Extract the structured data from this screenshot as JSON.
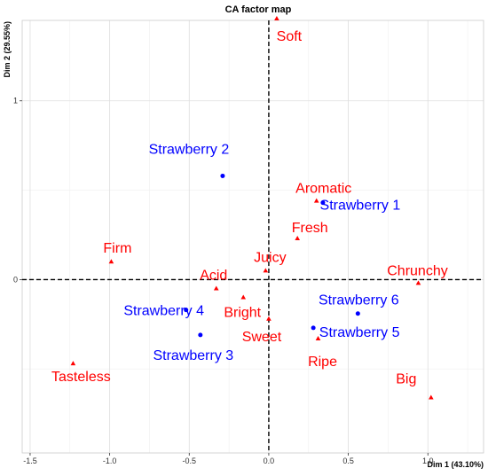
{
  "chart_data": {
    "type": "scatter",
    "title": "CA factor map",
    "xlabel": "Dim 1 (43.10%)",
    "ylabel": "Dim 2 (29.55%)",
    "xlim": [
      -1.55,
      1.35
    ],
    "ylim": [
      -0.97,
      1.45
    ],
    "x_ticks": [
      -1.5,
      -1.0,
      -0.5,
      0.0,
      0.5,
      1.0
    ],
    "x_tick_labels": [
      "-1.5",
      "-1.0",
      "-0.5",
      "0.0",
      "0.5",
      "1.0"
    ],
    "y_ticks": [
      0,
      1
    ],
    "y_tick_labels": [
      "0",
      "1"
    ],
    "grid": true,
    "colors": {
      "rows": "#0000ff",
      "cols": "#ff0000"
    },
    "series": [
      {
        "marker": "circle",
        "color": "#0000ff",
        "points": [
          {
            "label": "Strawberry 1",
            "x": 0.34,
            "y": 0.43
          },
          {
            "label": "Strawberry 2",
            "x": -0.29,
            "y": 0.58
          },
          {
            "label": "Strawberry 3",
            "x": -0.43,
            "y": -0.31
          },
          {
            "label": "Strawberry 4",
            "x": -0.52,
            "y": -0.17
          },
          {
            "label": "Strawberry 5",
            "x": 0.28,
            "y": -0.27
          },
          {
            "label": "Strawberry 6",
            "x": 0.56,
            "y": -0.19
          }
        ]
      },
      {
        "marker": "triangle",
        "color": "#ff0000",
        "points": [
          {
            "label": "Soft",
            "x": 0.05,
            "y": 1.46
          },
          {
            "label": "Aromatic",
            "x": 0.3,
            "y": 0.44
          },
          {
            "label": "Fresh",
            "x": 0.18,
            "y": 0.23
          },
          {
            "label": "Juicy",
            "x": -0.02,
            "y": 0.05
          },
          {
            "label": "Firm",
            "x": -0.99,
            "y": 0.1
          },
          {
            "label": "Acid",
            "x": -0.33,
            "y": -0.05
          },
          {
            "label": "Bright",
            "x": -0.16,
            "y": -0.1
          },
          {
            "label": "Sweet",
            "x": 0.0,
            "y": -0.22
          },
          {
            "label": "Ripe",
            "x": 0.31,
            "y": -0.33
          },
          {
            "label": "Chrunchy",
            "x": 0.94,
            "y": -0.02
          },
          {
            "label": "Big",
            "x": 1.02,
            "y": -0.66
          },
          {
            "label": "Tasteless",
            "x": -1.23,
            "y": -0.47
          }
        ]
      }
    ]
  }
}
